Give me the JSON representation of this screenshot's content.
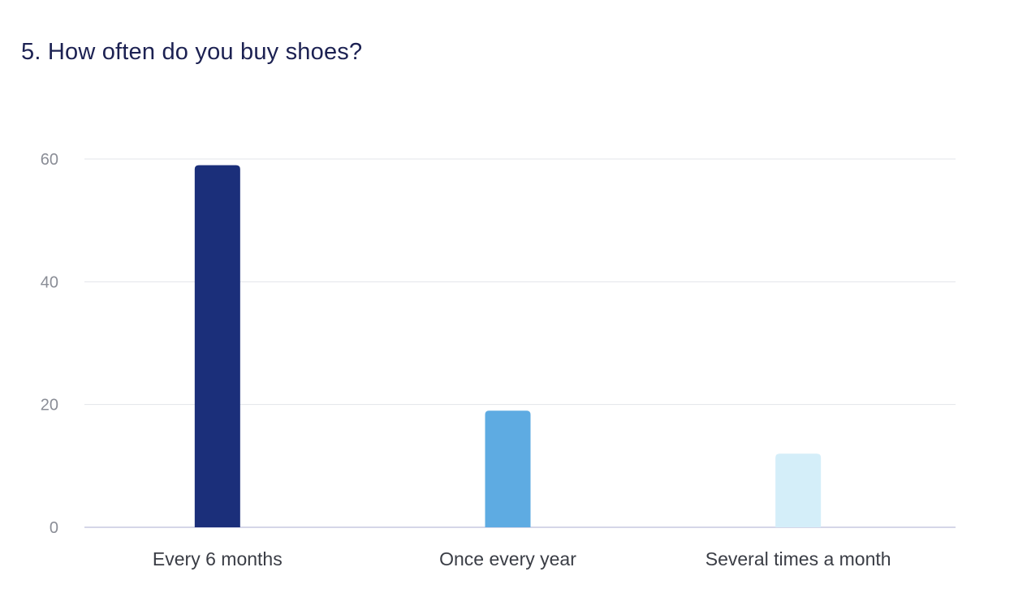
{
  "title": "5. How often do you buy shoes?",
  "colors": {
    "title": "#1c2152",
    "grid": "#e3e4ea",
    "baseline": "#c7c8e0",
    "tick_text": "#8a8d96",
    "category_text": "#3a3d45"
  },
  "chart_data": {
    "type": "bar",
    "title": "5. How often do you buy shoes?",
    "xlabel": "",
    "ylabel": "",
    "categories": [
      "Every 6 months",
      "Once every year",
      "Several times a month"
    ],
    "values": [
      59,
      19,
      12
    ],
    "bar_colors": [
      "#1b2f7a",
      "#5eabe2",
      "#d4eef9"
    ],
    "ylim": [
      0,
      60
    ],
    "yticks": [
      0,
      20,
      40,
      60
    ],
    "grid": true,
    "legend": "none"
  }
}
